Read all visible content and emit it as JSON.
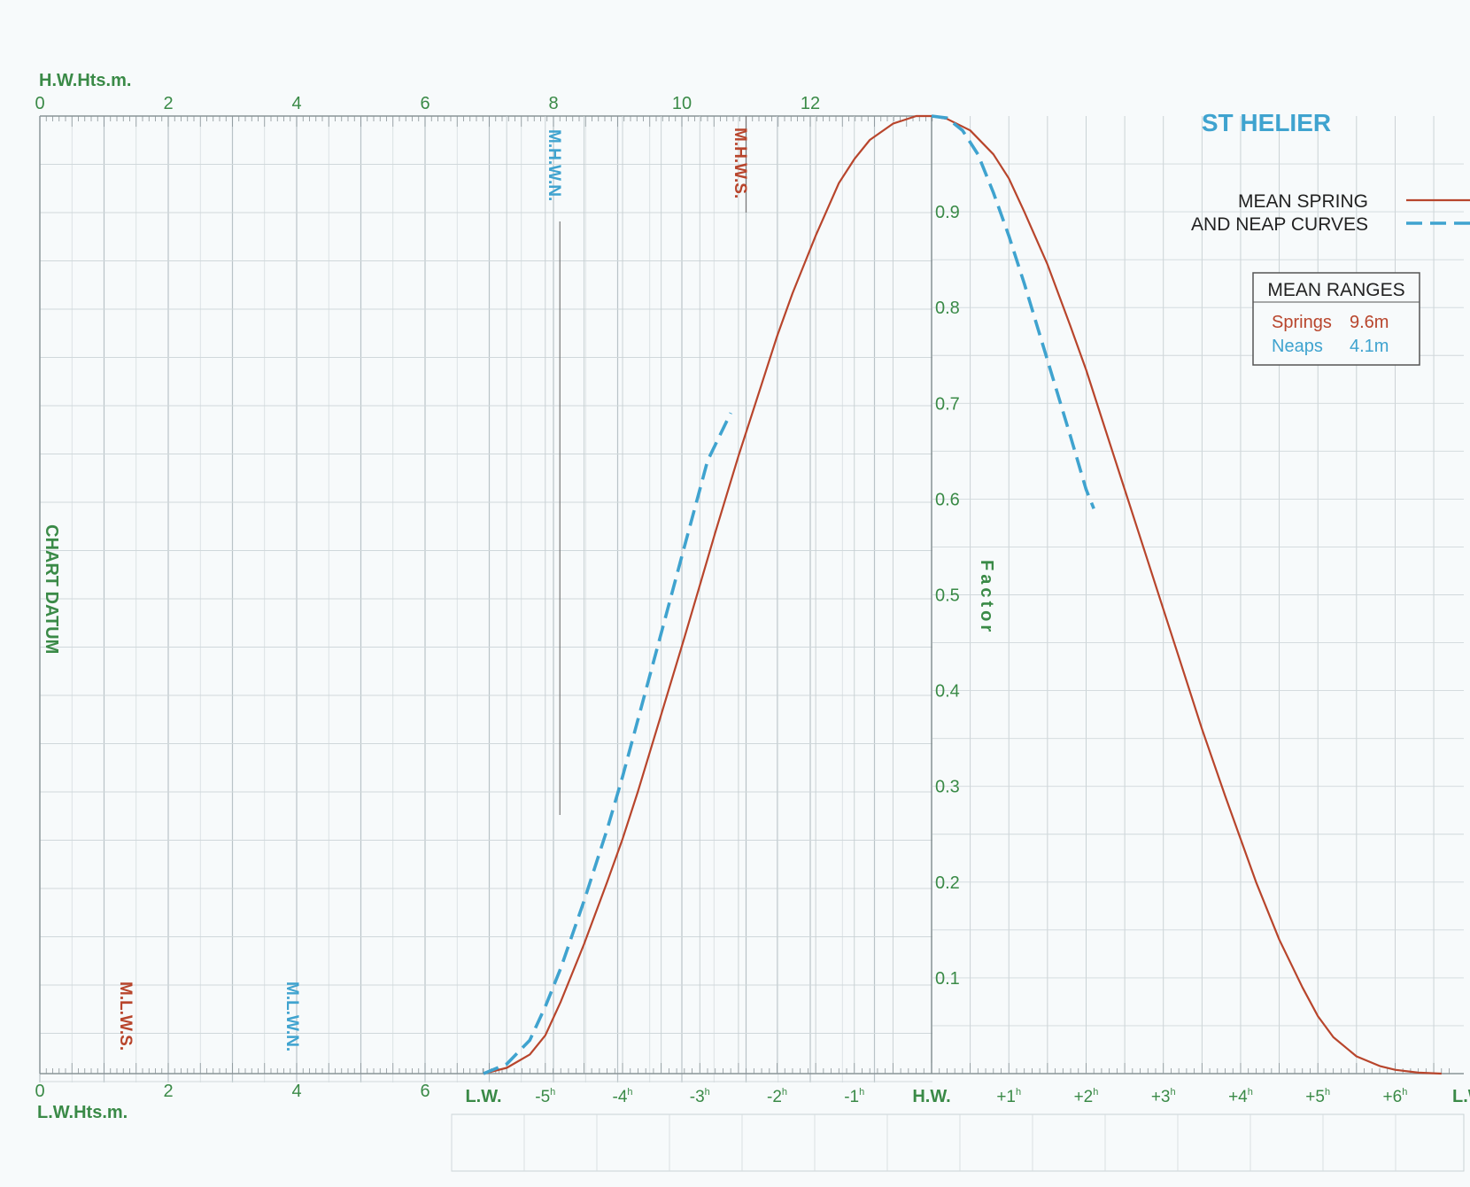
{
  "chart_data": {
    "type": "line",
    "title": "ST HELIER",
    "legend": {
      "label_line1": "MEAN SPRING",
      "label_line2": "AND NEAP CURVES",
      "placement": "top-right"
    },
    "mean_ranges": {
      "heading": "MEAN RANGES",
      "springs_label": "Springs",
      "springs_value": "9.6m",
      "neaps_label": "Neaps",
      "neaps_value": "4.1m"
    },
    "hw_axis": {
      "label": "H.W.Hts.m.",
      "ticks": [
        "0",
        "2",
        "4",
        "6",
        "8",
        "10",
        "12"
      ],
      "range": [
        0,
        14
      ]
    },
    "lw_axis": {
      "label": "L.W.Hts.m.",
      "ticks": [
        "0",
        "2",
        "4",
        "6"
      ]
    },
    "chart_datum_label": "CHART DATUM",
    "level_markers": {
      "mhws": "M.H.W.S.",
      "mhwn": "M.H.W.N.",
      "mlws": "M.L.W.S.",
      "mlwn": "M.L.W.N."
    },
    "factor_label": "Factor",
    "factor_ticks": [
      "0.1",
      "0.2",
      "0.3",
      "0.4",
      "0.5",
      "0.6",
      "0.7",
      "0.8",
      "0.9"
    ],
    "time_axis": {
      "lw_label": "L.W.",
      "hw_label": "H.W.",
      "end_label": "L.W.",
      "hour_ticks": [
        {
          "sign": "-",
          "n": "5",
          "h": "h",
          "t": -5
        },
        {
          "sign": "-",
          "n": "4",
          "h": "h",
          "t": -4
        },
        {
          "sign": "-",
          "n": "3",
          "h": "h",
          "t": -3
        },
        {
          "sign": "-",
          "n": "2",
          "h": "h",
          "t": -2
        },
        {
          "sign": "-",
          "n": "1",
          "h": "h",
          "t": -1
        },
        {
          "sign": "+",
          "n": "1",
          "h": "h",
          "t": 1
        },
        {
          "sign": "+",
          "n": "2",
          "h": "h",
          "t": 2
        },
        {
          "sign": "+",
          "n": "3",
          "h": "h",
          "t": 3
        },
        {
          "sign": "+",
          "n": "4",
          "h": "h",
          "t": 4
        },
        {
          "sign": "+",
          "n": "5",
          "h": "h",
          "t": 5
        },
        {
          "sign": "+",
          "n": "6",
          "h": "h",
          "t": 6
        }
      ],
      "range": [
        -5.8,
        6.7
      ]
    },
    "factor_range": [
      0,
      1
    ],
    "series": [
      {
        "style": "spring",
        "color": "#b8452c",
        "points": [
          [
            -5.8,
            0.0
          ],
          [
            -5.5,
            0.006
          ],
          [
            -5.2,
            0.02
          ],
          [
            -5.0,
            0.04
          ],
          [
            -4.8,
            0.075
          ],
          [
            -4.5,
            0.135
          ],
          [
            -4.2,
            0.2
          ],
          [
            -4.0,
            0.245
          ],
          [
            -3.8,
            0.295
          ],
          [
            -3.5,
            0.375
          ],
          [
            -3.2,
            0.455
          ],
          [
            -3.0,
            0.51
          ],
          [
            -2.8,
            0.565
          ],
          [
            -2.5,
            0.645
          ],
          [
            -2.2,
            0.72
          ],
          [
            -2.0,
            0.77
          ],
          [
            -1.8,
            0.815
          ],
          [
            -1.5,
            0.875
          ],
          [
            -1.2,
            0.93
          ],
          [
            -1.0,
            0.955
          ],
          [
            -0.8,
            0.975
          ],
          [
            -0.5,
            0.992
          ],
          [
            -0.2,
            1.0
          ],
          [
            0.0,
            1.0
          ],
          [
            0.2,
            0.997
          ],
          [
            0.5,
            0.985
          ],
          [
            0.8,
            0.96
          ],
          [
            1.0,
            0.935
          ],
          [
            1.2,
            0.9
          ],
          [
            1.5,
            0.845
          ],
          [
            1.8,
            0.78
          ],
          [
            2.0,
            0.735
          ],
          [
            2.2,
            0.685
          ],
          [
            2.5,
            0.61
          ],
          [
            2.8,
            0.535
          ],
          [
            3.0,
            0.485
          ],
          [
            3.2,
            0.435
          ],
          [
            3.5,
            0.36
          ],
          [
            3.8,
            0.29
          ],
          [
            4.0,
            0.245
          ],
          [
            4.2,
            0.2
          ],
          [
            4.5,
            0.14
          ],
          [
            4.8,
            0.09
          ],
          [
            5.0,
            0.06
          ],
          [
            5.2,
            0.038
          ],
          [
            5.5,
            0.018
          ],
          [
            5.8,
            0.008
          ],
          [
            6.0,
            0.004
          ],
          [
            6.3,
            0.001
          ],
          [
            6.6,
            0.0
          ]
        ]
      },
      {
        "style": "neap",
        "color": "#3fa3cf",
        "points": [
          [
            -5.8,
            0.0
          ],
          [
            -5.5,
            0.01
          ],
          [
            -5.2,
            0.035
          ],
          [
            -5.0,
            0.07
          ],
          [
            -4.8,
            0.11
          ],
          [
            -4.5,
            0.18
          ],
          [
            -4.2,
            0.255
          ],
          [
            -4.0,
            0.31
          ],
          [
            -3.8,
            0.37
          ],
          [
            -3.5,
            0.46
          ],
          [
            -3.2,
            0.55
          ],
          [
            -3.0,
            0.61
          ],
          [
            -2.9,
            0.64
          ],
          [
            -2.6,
            0.69
          ]
        ]
      },
      {
        "style": "neap",
        "color": "#3fa3cf",
        "points": [
          [
            0.0,
            1.0
          ],
          [
            0.2,
            0.998
          ],
          [
            0.4,
            0.985
          ],
          [
            0.6,
            0.96
          ],
          [
            0.8,
            0.92
          ],
          [
            1.0,
            0.875
          ],
          [
            1.2,
            0.825
          ],
          [
            1.5,
            0.745
          ],
          [
            1.8,
            0.665
          ],
          [
            2.0,
            0.61
          ],
          [
            2.1,
            0.59
          ]
        ]
      }
    ],
    "ranges_box": {
      "springs_color": "#b8452c",
      "neaps_color": "#3fa3cf"
    }
  }
}
